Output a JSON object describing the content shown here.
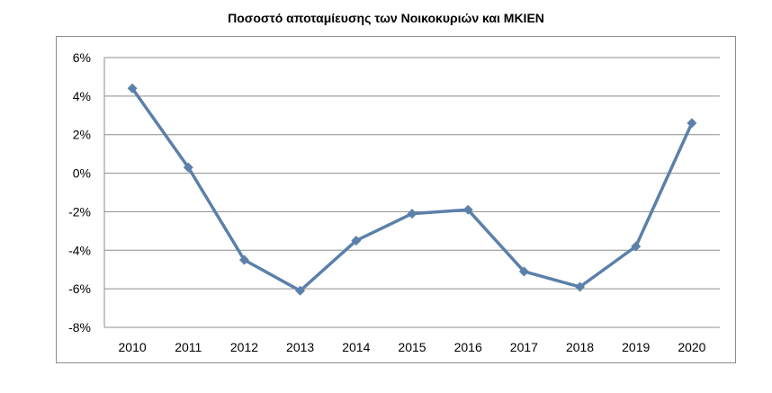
{
  "chart_data": {
    "type": "line",
    "title": "Ποσοστό αποταμίευσης των Νοικοκυριών και ΜΚΙΕΝ",
    "xlabel": "",
    "ylabel": "",
    "categories": [
      "2010",
      "2011",
      "2012",
      "2013",
      "2014",
      "2015",
      "2016",
      "2017",
      "2018",
      "2019",
      "2020"
    ],
    "series": [
      {
        "values": [
          4.4,
          0.3,
          -4.5,
          -6.1,
          -3.5,
          -2.1,
          -1.9,
          -5.1,
          -5.9,
          -3.8,
          2.6
        ],
        "color": "#5b80a9"
      }
    ],
    "ylim": [
      -8,
      6
    ],
    "yticks": [
      6,
      4,
      2,
      0,
      -2,
      -4,
      -6,
      -8
    ],
    "ytick_labels": [
      "6%",
      "4%",
      "2%",
      "0%",
      "-2%",
      "-4%",
      "-6%",
      "-8%"
    ],
    "grid": true,
    "legend": "none",
    "marker": "diamond"
  }
}
